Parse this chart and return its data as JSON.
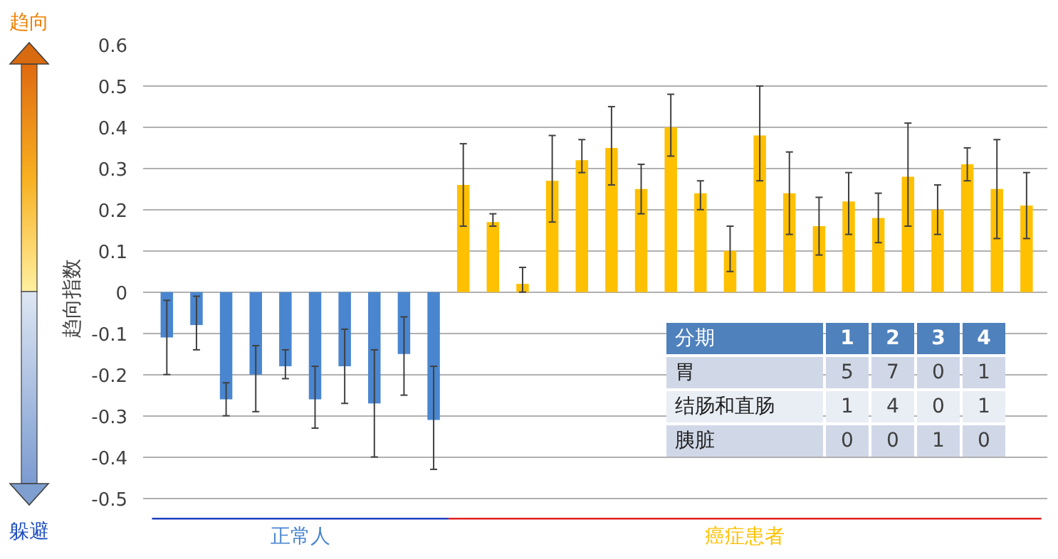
{
  "chart_data": [
    {
      "type": "bar",
      "ylabel": "趋向指数",
      "categories": [
        null,
        null,
        null,
        null,
        null,
        null,
        null,
        null,
        null,
        null,
        null,
        null,
        null,
        null,
        null,
        null,
        null,
        null,
        null,
        null,
        null,
        null,
        null,
        null,
        null,
        null,
        null,
        null,
        null,
        null
      ],
      "series": [
        {
          "name": "正常人",
          "color": "#4a86d0",
          "values": [
            -0.11,
            -0.08,
            -0.26,
            -0.2,
            -0.18,
            -0.26,
            -0.18,
            -0.27,
            -0.15,
            -0.31,
            null,
            null,
            null,
            null,
            null,
            null,
            null,
            null,
            null,
            null,
            null,
            null,
            null,
            null,
            null,
            null,
            null,
            null,
            null,
            null
          ],
          "errors": [
            [
              -0.2,
              -0.02
            ],
            [
              -0.14,
              -0.01
            ],
            [
              -0.3,
              -0.22
            ],
            [
              -0.29,
              -0.13
            ],
            [
              -0.21,
              -0.14
            ],
            [
              -0.33,
              -0.18
            ],
            [
              -0.27,
              -0.09
            ],
            [
              -0.4,
              -0.14
            ],
            [
              -0.25,
              -0.06
            ],
            [
              -0.43,
              -0.18
            ],
            null,
            null,
            null,
            null,
            null,
            null,
            null,
            null,
            null,
            null,
            null,
            null,
            null,
            null,
            null,
            null,
            null,
            null,
            null,
            null
          ]
        },
        {
          "name": "癌症患者",
          "color": "#ffc000",
          "values": [
            null,
            null,
            null,
            null,
            null,
            null,
            null,
            null,
            null,
            null,
            0.26,
            0.17,
            0.02,
            0.27,
            0.32,
            0.35,
            0.25,
            0.4,
            0.24,
            0.1,
            0.38,
            0.24,
            0.16,
            0.22,
            0.18,
            0.28,
            0.2,
            0.31,
            0.25,
            0.21
          ],
          "errors": [
            null,
            null,
            null,
            null,
            null,
            null,
            null,
            null,
            null,
            null,
            [
              0.16,
              0.36
            ],
            [
              0.16,
              0.19
            ],
            [
              0.0,
              0.06
            ],
            [
              0.17,
              0.38
            ],
            [
              0.29,
              0.37
            ],
            [
              0.26,
              0.45
            ],
            [
              0.19,
              0.31
            ],
            [
              0.33,
              0.48
            ],
            [
              0.2,
              0.27
            ],
            [
              0.05,
              0.16
            ],
            [
              0.27,
              0.5
            ],
            [
              0.14,
              0.34
            ],
            [
              0.09,
              0.23
            ],
            [
              0.14,
              0.29
            ],
            [
              0.12,
              0.24
            ],
            [
              0.16,
              0.41
            ],
            [
              0.14,
              0.26
            ],
            [
              0.27,
              0.35
            ],
            [
              0.13,
              0.37
            ],
            [
              0.13,
              0.29
            ]
          ]
        }
      ],
      "ylim": [
        -0.5,
        0.6
      ],
      "yticks": [
        0.6,
        0.5,
        0.4,
        0.3,
        0.2,
        0.1,
        0,
        -0.1,
        -0.2,
        -0.3,
        -0.4,
        -0.5
      ],
      "grid": "y",
      "tick_labels": "y",
      "legend": false,
      "annotations": [
        "趋向",
        "躲避"
      ]
    },
    {
      "type": "heatmap",
      "xlabel": "分期",
      "categories": [
        "1",
        "2",
        "3",
        "4"
      ],
      "y_categories": [
        "胃",
        "结肠和直肠",
        "胰脏"
      ],
      "cells": [
        [
          5,
          7,
          0,
          1
        ],
        [
          1,
          4,
          0,
          1
        ],
        [
          0,
          0,
          1,
          0
        ]
      ],
      "data_labels": true
    }
  ]
}
